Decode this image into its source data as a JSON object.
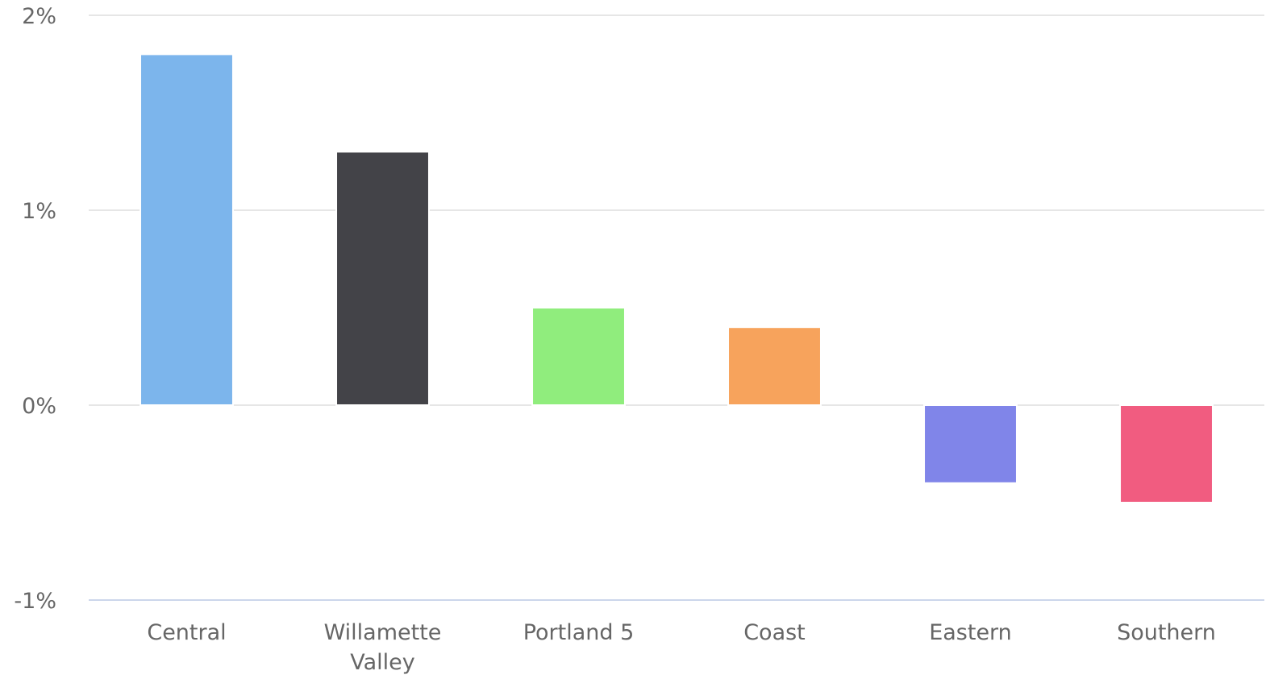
{
  "chart_data": {
    "type": "bar",
    "title": "",
    "xlabel": "",
    "ylabel": "",
    "categories": [
      "Central",
      "Willamette Valley",
      "Portland 5",
      "Coast",
      "Eastern",
      "Southern"
    ],
    "values": [
      1.8,
      1.3,
      0.5,
      0.4,
      -0.4,
      -0.5
    ],
    "unit": "%",
    "ylim": [
      -1,
      2
    ],
    "yticks": [
      {
        "value": 2,
        "label": "2%"
      },
      {
        "value": 1,
        "label": "1%"
      },
      {
        "value": 0,
        "label": "0%"
      },
      {
        "value": -1,
        "label": "-1%"
      }
    ],
    "grid": true,
    "legend": "none",
    "colors": [
      "#7cb5ec",
      "#434348",
      "#90ed7d",
      "#f7a35c",
      "#8085e9",
      "#f15c80"
    ]
  }
}
